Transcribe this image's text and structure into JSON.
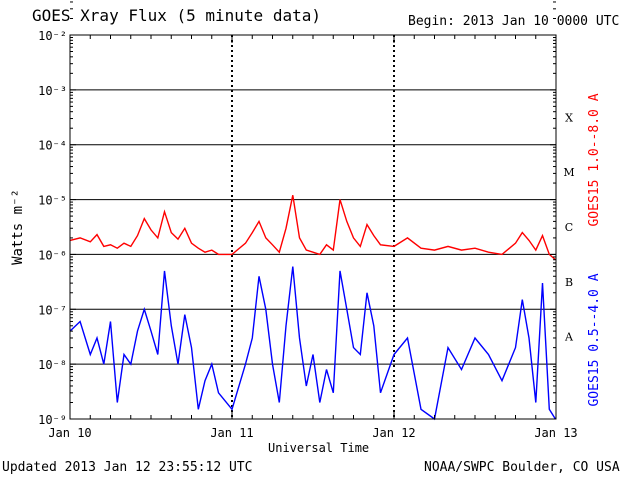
{
  "header": {
    "title": "GOES Xray Flux (5 minute data)",
    "begin": "Begin:  2013 Jan 10 0000 UTC"
  },
  "footer": {
    "updated": "Updated 2013 Jan 12 23:55:12 UTC",
    "credit": "NOAA/SWPC Boulder, CO USA"
  },
  "chart_data": {
    "type": "line",
    "title": "GOES Xray Flux (5 minute data)",
    "xlabel": "Universal Time",
    "ylabel": "Watts m⁻²",
    "yscale": "log",
    "ylim": [
      1e-09,
      0.01
    ],
    "y_ticks": [
      {
        "value": 0.01,
        "label": "10⁻²"
      },
      {
        "value": 0.001,
        "label": "10⁻³"
      },
      {
        "value": 0.0001,
        "label": "10⁻⁴"
      },
      {
        "value": 1e-05,
        "label": "10⁻⁵"
      },
      {
        "value": 1e-06,
        "label": "10⁻⁶"
      },
      {
        "value": 1e-07,
        "label": "10⁻⁷"
      },
      {
        "value": 1e-08,
        "label": "10⁻⁸"
      },
      {
        "value": 1e-09,
        "label": "10⁻⁹"
      }
    ],
    "xlim": [
      "2013-01-10",
      "2013-01-13"
    ],
    "x_ticks": [
      {
        "value": "2013-01-10",
        "label": "Jan 10"
      },
      {
        "value": "2013-01-11",
        "label": "Jan 11"
      },
      {
        "value": "2013-01-12",
        "label": "Jan 12"
      },
      {
        "value": "2013-01-13",
        "label": "Jan 13"
      }
    ],
    "grid": "horizontal at each decade; dashed vertical at each day boundary",
    "flare_classes": [
      {
        "label": "X",
        "value": 0.0001
      },
      {
        "label": "M",
        "value": 1e-05
      },
      {
        "label": "C",
        "value": 1e-06
      },
      {
        "label": "B",
        "value": 1e-07
      },
      {
        "label": "A",
        "value": 1e-08
      }
    ],
    "series": [
      {
        "name": "GOES15 1.0--8.0 A",
        "color": "#ff0000",
        "x": [
          "2013-01-10 00:00",
          "2013-01-10 01:30",
          "2013-01-10 03:00",
          "2013-01-10 04:00",
          "2013-01-10 05:00",
          "2013-01-10 06:00",
          "2013-01-10 07:00",
          "2013-01-10 08:00",
          "2013-01-10 09:00",
          "2013-01-10 10:00",
          "2013-01-10 11:00",
          "2013-01-10 12:00",
          "2013-01-10 13:00",
          "2013-01-10 14:00",
          "2013-01-10 15:00",
          "2013-01-10 16:00",
          "2013-01-10 17:00",
          "2013-01-10 18:00",
          "2013-01-10 19:00",
          "2013-01-10 20:00",
          "2013-01-10 21:00",
          "2013-01-10 22:00",
          "2013-01-11 00:00",
          "2013-01-11 02:00",
          "2013-01-11 03:00",
          "2013-01-11 04:00",
          "2013-01-11 05:00",
          "2013-01-11 06:00",
          "2013-01-11 07:00",
          "2013-01-11 08:00",
          "2013-01-11 09:00",
          "2013-01-11 10:00",
          "2013-01-11 11:00",
          "2013-01-11 12:00",
          "2013-01-11 13:00",
          "2013-01-11 14:00",
          "2013-01-11 15:00",
          "2013-01-11 16:00",
          "2013-01-11 17:00",
          "2013-01-11 18:00",
          "2013-01-11 19:00",
          "2013-01-11 20:00",
          "2013-01-11 21:00",
          "2013-01-11 22:00",
          "2013-01-12 00:00",
          "2013-01-12 02:00",
          "2013-01-12 04:00",
          "2013-01-12 06:00",
          "2013-01-12 08:00",
          "2013-01-12 10:00",
          "2013-01-12 12:00",
          "2013-01-12 14:00",
          "2013-01-12 16:00",
          "2013-01-12 18:00",
          "2013-01-12 19:00",
          "2013-01-12 20:00",
          "2013-01-12 21:00",
          "2013-01-12 22:00",
          "2013-01-12 23:00",
          "2013-01-12 23:55"
        ],
        "y": [
          1.8e-06,
          2e-06,
          1.7e-06,
          2.3e-06,
          1.4e-06,
          1.5e-06,
          1.3e-06,
          1.6e-06,
          1.4e-06,
          2.2e-06,
          4.5e-06,
          2.8e-06,
          2e-06,
          6e-06,
          2.5e-06,
          1.9e-06,
          3e-06,
          1.6e-06,
          1.3e-06,
          1.1e-06,
          1.2e-06,
          1e-06,
          1e-06,
          1.6e-06,
          2.5e-06,
          4e-06,
          2e-06,
          1.5e-06,
          1.1e-06,
          3e-06,
          1.2e-05,
          2e-06,
          1.2e-06,
          1.1e-06,
          1e-06,
          1.5e-06,
          1.2e-06,
          1e-05,
          4e-06,
          2e-06,
          1.4e-06,
          3.5e-06,
          2.2e-06,
          1.5e-06,
          1.4e-06,
          2e-06,
          1.3e-06,
          1.2e-06,
          1.4e-06,
          1.2e-06,
          1.3e-06,
          1.1e-06,
          1e-06,
          1.6e-06,
          2.5e-06,
          1.8e-06,
          1.2e-06,
          2.2e-06,
          1e-06,
          8e-07
        ]
      },
      {
        "name": "GOES15 0.5--4.0 A",
        "color": "#0000ff",
        "x": [
          "2013-01-10 00:00",
          "2013-01-10 01:30",
          "2013-01-10 03:00",
          "2013-01-10 04:00",
          "2013-01-10 05:00",
          "2013-01-10 06:00",
          "2013-01-10 07:00",
          "2013-01-10 08:00",
          "2013-01-10 09:00",
          "2013-01-10 10:00",
          "2013-01-10 11:00",
          "2013-01-10 12:00",
          "2013-01-10 13:00",
          "2013-01-10 14:00",
          "2013-01-10 15:00",
          "2013-01-10 16:00",
          "2013-01-10 17:00",
          "2013-01-10 18:00",
          "2013-01-10 19:00",
          "2013-01-10 20:00",
          "2013-01-10 21:00",
          "2013-01-10 22:00",
          "2013-01-11 00:00",
          "2013-01-11 02:00",
          "2013-01-11 03:00",
          "2013-01-11 04:00",
          "2013-01-11 05:00",
          "2013-01-11 06:00",
          "2013-01-11 07:00",
          "2013-01-11 08:00",
          "2013-01-11 09:00",
          "2013-01-11 10:00",
          "2013-01-11 11:00",
          "2013-01-11 12:00",
          "2013-01-11 13:00",
          "2013-01-11 14:00",
          "2013-01-11 15:00",
          "2013-01-11 16:00",
          "2013-01-11 17:00",
          "2013-01-11 18:00",
          "2013-01-11 19:00",
          "2013-01-11 20:00",
          "2013-01-11 21:00",
          "2013-01-11 22:00",
          "2013-01-12 00:00",
          "2013-01-12 02:00",
          "2013-01-12 04:00",
          "2013-01-12 06:00",
          "2013-01-12 08:00",
          "2013-01-12 10:00",
          "2013-01-12 12:00",
          "2013-01-12 14:00",
          "2013-01-12 16:00",
          "2013-01-12 18:00",
          "2013-01-12 19:00",
          "2013-01-12 20:00",
          "2013-01-12 21:00",
          "2013-01-12 22:00",
          "2013-01-12 23:00",
          "2013-01-12 23:55"
        ],
        "y": [
          4e-08,
          6e-08,
          1.5e-08,
          3e-08,
          1e-08,
          6e-08,
          2e-09,
          1.5e-08,
          1e-08,
          4e-08,
          1e-07,
          4e-08,
          1.5e-08,
          5e-07,
          5e-08,
          1e-08,
          8e-08,
          2e-08,
          1.5e-09,
          5e-09,
          1e-08,
          3e-09,
          1.5e-09,
          1e-08,
          3e-08,
          4e-07,
          1e-07,
          1e-08,
          2e-09,
          5e-08,
          6e-07,
          3e-08,
          4e-09,
          1.5e-08,
          2e-09,
          8e-09,
          3e-09,
          5e-07,
          1e-07,
          2e-08,
          1.5e-08,
          2e-07,
          5e-08,
          3e-09,
          1.5e-08,
          3e-08,
          1.5e-09,
          1e-09,
          2e-08,
          8e-09,
          3e-08,
          1.5e-08,
          5e-09,
          2e-08,
          1.5e-07,
          3e-08,
          2e-09,
          3e-07,
          1.5e-09,
          1e-09
        ]
      }
    ]
  }
}
